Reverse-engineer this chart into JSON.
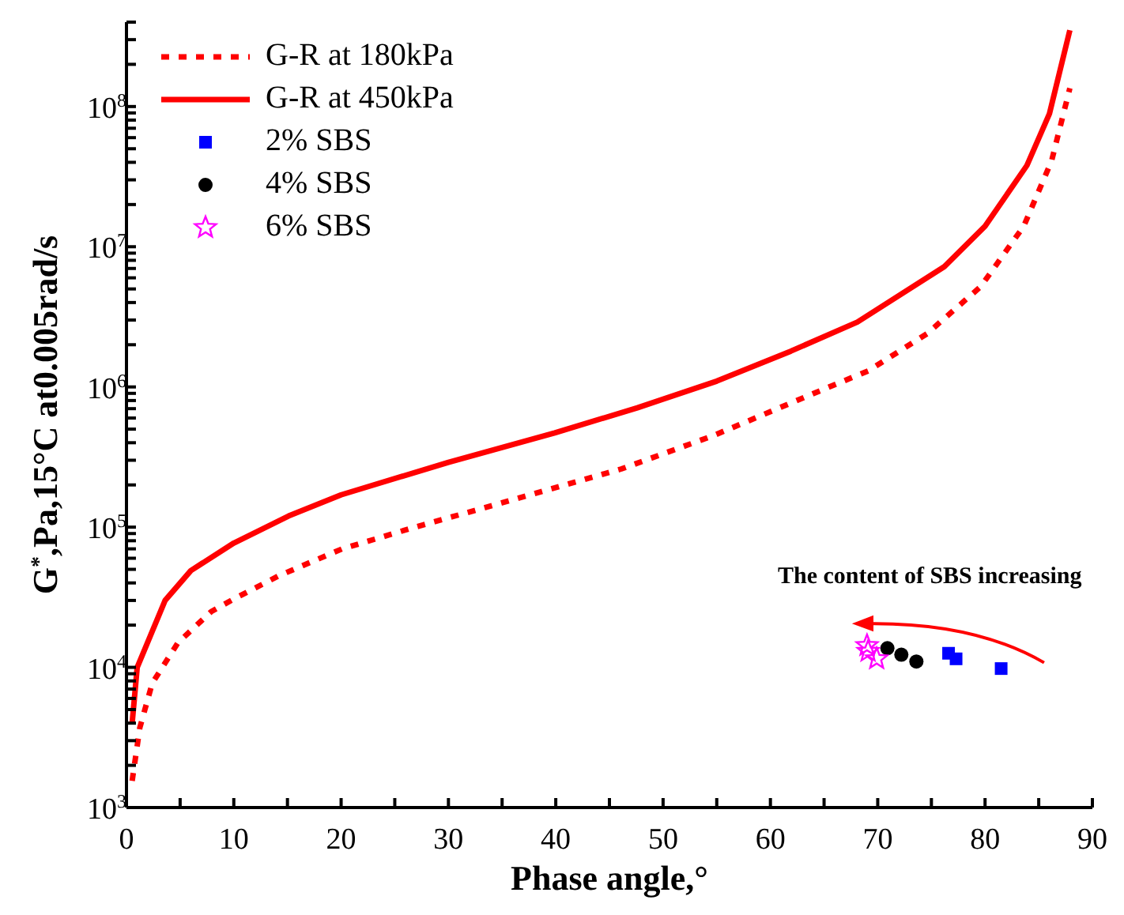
{
  "chart_data": {
    "type": "line",
    "xlabel": "Phase angle,°",
    "ylabel": "G$^{*}$,Pa,15°C at0.005rad/s",
    "log": "y",
    "legend": "top left",
    "xlim": [
      0,
      90
    ],
    "xticks": [
      0,
      {
        "value": 5,
        "label": null
      },
      10,
      {
        "value": 15,
        "label": null
      },
      20,
      {
        "value": 25,
        "label": null
      },
      30,
      {
        "value": 35,
        "label": null
      },
      40,
      {
        "value": 45,
        "label": null
      },
      50,
      {
        "value": 55,
        "label": null
      },
      60,
      {
        "value": 65,
        "label": null
      },
      70,
      {
        "value": 75,
        "label": null
      },
      80,
      {
        "value": 85,
        "label": null
      },
      90
    ],
    "ylim": [
      1000,
      400000000
    ],
    "yticks": [
      {
        "value": 1000,
        "label": "10$^{3}$"
      },
      {
        "value": 2000,
        "label": null
      },
      {
        "value": 3000,
        "label": null
      },
      {
        "value": 4000,
        "label": null
      },
      {
        "value": 5000,
        "label": null
      },
      {
        "value": 6000,
        "label": null
      },
      {
        "value": 7000,
        "label": null
      },
      {
        "value": 8000,
        "label": null
      },
      {
        "value": 9000,
        "label": null
      },
      {
        "value": 10000,
        "label": "10$^{4}$"
      },
      {
        "value": 20000,
        "label": null
      },
      {
        "value": 30000,
        "label": null
      },
      {
        "value": 40000,
        "label": null
      },
      {
        "value": 50000,
        "label": null
      },
      {
        "value": 60000,
        "label": null
      },
      {
        "value": 70000,
        "label": null
      },
      {
        "value": 80000,
        "label": null
      },
      {
        "value": 90000,
        "label": null
      },
      {
        "value": 100000,
        "label": "10$^{5}$"
      },
      {
        "value": 200000,
        "label": null
      },
      {
        "value": 300000,
        "label": null
      },
      {
        "value": 400000,
        "label": null
      },
      {
        "value": 500000,
        "label": null
      },
      {
        "value": 600000,
        "label": null
      },
      {
        "value": 700000,
        "label": null
      },
      {
        "value": 800000,
        "label": null
      },
      {
        "value": 900000,
        "label": null
      },
      {
        "value": 1000000,
        "label": "10$^{6}$"
      },
      {
        "value": 2000000,
        "label": null
      },
      {
        "value": 3000000,
        "label": null
      },
      {
        "value": 4000000,
        "label": null
      },
      {
        "value": 5000000,
        "label": null
      },
      {
        "value": 6000000,
        "label": null
      },
      {
        "value": 7000000,
        "label": null
      },
      {
        "value": 8000000,
        "label": null
      },
      {
        "value": 9000000,
        "label": null
      },
      {
        "value": 10000000,
        "label": "10$^{7}$"
      },
      {
        "value": 20000000,
        "label": null
      },
      {
        "value": 30000000,
        "label": null
      },
      {
        "value": 40000000,
        "label": null
      },
      {
        "value": 50000000,
        "label": null
      },
      {
        "value": 60000000,
        "label": null
      },
      {
        "value": 70000000,
        "label": null
      },
      {
        "value": 80000000,
        "label": null
      },
      {
        "value": 90000000,
        "label": null
      },
      {
        "value": 100000000,
        "label": "10$^{8}$"
      },
      {
        "value": 200000000,
        "label": null
      },
      {
        "value": 300000000,
        "label": null
      },
      {
        "value": 400000000,
        "label": null
      }
    ],
    "annotations": [
      "The content of SBS increasing"
    ],
    "series": [
      {
        "name": "G-R at 180kPa",
        "type": "line",
        "line_style": "dotted",
        "marker": "none",
        "color": "#ff0000",
        "x": [
          0.53,
          1.24,
          2.4,
          4.8,
          7.9,
          10.1,
          14.2,
          20.1,
          26.5,
          35.1,
          46.1,
          54.7,
          65.2,
          69.1,
          74.6,
          79.6,
          83.6,
          86.2,
          87.9
        ],
        "values": [
          1550,
          3700,
          7700,
          15000,
          25000,
          31000,
          45000,
          70000,
          98000,
          150000,
          260000,
          450000,
          980000,
          1300000,
          2400000,
          5200000,
          14000000,
          41000000,
          135000000
        ]
      },
      {
        "name": "G-R at 450kPa",
        "line_style": "solid",
        "marker": "none",
        "color": "#ff0000",
        "x": [
          0.53,
          1.0,
          1.96,
          3.6,
          6.0,
          10,
          15.1,
          20,
          30,
          39.9,
          47.6,
          55,
          61.9,
          68.1,
          76.2,
          80.0,
          83.9,
          86.0,
          87.9
        ],
        "values": [
          4000,
          10000,
          15000,
          30000,
          49000,
          77000,
          120000,
          170000,
          290000,
          470000,
          710000,
          1100000,
          1800000,
          2900000,
          7200000,
          14000000,
          38000000,
          89000000,
          350000000
        ]
      },
      {
        "name": "2% SBS",
        "type": "scatter",
        "marker": "square",
        "color": "#0000ff",
        "x": [
          76.6,
          77.3,
          81.5
        ],
        "values": [
          12600,
          11500,
          9800
        ]
      },
      {
        "name": "4% SBS",
        "type": "scatter",
        "marker": "circle",
        "color": "#000000",
        "x": [
          70.9,
          72.2,
          73.6
        ],
        "values": [
          13700,
          12300,
          11000
        ]
      },
      {
        "name": "6% SBS",
        "type": "scatter",
        "marker": "star",
        "color": "#ff00ff",
        "x": [
          69.0,
          69.1,
          69.9
        ],
        "values": [
          14300,
          13000,
          11500
        ]
      }
    ]
  }
}
